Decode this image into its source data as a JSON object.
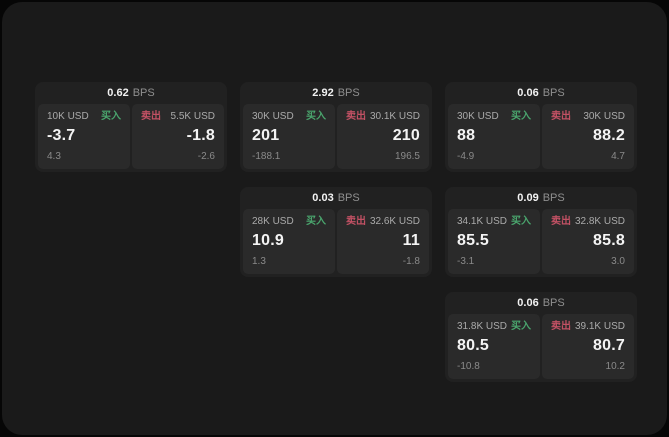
{
  "labels": {
    "bps_unit": "BPS",
    "buy": "买入",
    "sell": "卖出"
  },
  "colors": {
    "screen_background": "#1a1a1a",
    "card_background": "#212121",
    "panel_background": "#2a2a2a",
    "buy_accent": "#4aa56d",
    "sell_accent": "#c25164",
    "primary_text": "#f2f2f2",
    "muted_text": "#8a8a8a"
  },
  "cards": [
    {
      "row": 1,
      "col": 1,
      "bps": "0.62",
      "buy": {
        "size": "10K USD",
        "value": "-3.7",
        "change": "4.3"
      },
      "sell": {
        "size": "5.5K USD",
        "value": "-1.8",
        "change": "-2.6"
      }
    },
    {
      "row": 1,
      "col": 2,
      "bps": "2.92",
      "buy": {
        "size": "30K USD",
        "value": "201",
        "change": "-188.1"
      },
      "sell": {
        "size": "30.1K USD",
        "value": "210",
        "change": "196.5"
      }
    },
    {
      "row": 1,
      "col": 3,
      "bps": "0.06",
      "buy": {
        "size": "30K USD",
        "value": "88",
        "change": "-4.9"
      },
      "sell": {
        "size": "30K USD",
        "value": "88.2",
        "change": "4.7"
      }
    },
    {
      "row": 2,
      "col": 2,
      "bps": "0.03",
      "buy": {
        "size": "28K USD",
        "value": "10.9",
        "change": "1.3"
      },
      "sell": {
        "size": "32.6K USD",
        "value": "11",
        "change": "-1.8"
      }
    },
    {
      "row": 2,
      "col": 3,
      "bps": "0.09",
      "buy": {
        "size": "34.1K USD",
        "value": "85.5",
        "change": "-3.1"
      },
      "sell": {
        "size": "32.8K USD",
        "value": "85.8",
        "change": "3.0"
      }
    },
    {
      "row": 3,
      "col": 3,
      "bps": "0.06",
      "buy": {
        "size": "31.8K USD",
        "value": "80.5",
        "change": "-10.8"
      },
      "sell": {
        "size": "39.1K USD",
        "value": "80.7",
        "change": "10.2"
      }
    }
  ]
}
